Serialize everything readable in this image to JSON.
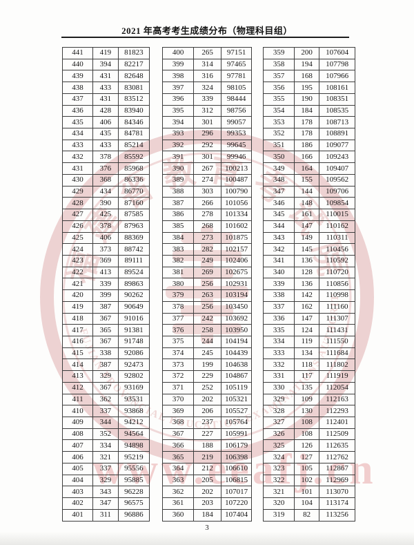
{
  "page": {
    "title": "2021 年高考考生成绩分布（物理科目组）",
    "page_number": "3"
  },
  "watermark": {
    "seal_chinese": "福建省教育考试院",
    "seal_english": "FUJIAN PROVINCIAL EDUCATION EXAMINATIONS AUTHORITY",
    "url_text": "www.eeafj.cn",
    "color": "#cf7d7d"
  },
  "tables": [
    {
      "rows": [
        [
          441,
          419,
          81823
        ],
        [
          440,
          394,
          82217
        ],
        [
          439,
          431,
          82648
        ],
        [
          438,
          433,
          83081
        ],
        [
          437,
          431,
          83512
        ],
        [
          436,
          428,
          83940
        ],
        [
          435,
          406,
          84346
        ],
        [
          434,
          435,
          84781
        ],
        [
          433,
          433,
          85214
        ],
        [
          432,
          378,
          85592
        ],
        [
          431,
          376,
          85968
        ],
        [
          430,
          368,
          86336
        ],
        [
          429,
          434,
          86770
        ],
        [
          428,
          390,
          87160
        ],
        [
          427,
          425,
          87585
        ],
        [
          426,
          378,
          87963
        ],
        [
          425,
          406,
          88369
        ],
        [
          424,
          373,
          88742
        ],
        [
          423,
          369,
          89111
        ],
        [
          422,
          413,
          89524
        ],
        [
          421,
          339,
          89863
        ],
        [
          420,
          399,
          90262
        ],
        [
          419,
          387,
          90649
        ],
        [
          418,
          367,
          91016
        ],
        [
          417,
          365,
          91381
        ],
        [
          416,
          367,
          91748
        ],
        [
          415,
          338,
          92086
        ],
        [
          414,
          387,
          92473
        ],
        [
          413,
          329,
          92802
        ],
        [
          412,
          367,
          93169
        ],
        [
          411,
          362,
          93531
        ],
        [
          410,
          337,
          93868
        ],
        [
          409,
          344,
          94212
        ],
        [
          408,
          352,
          94564
        ],
        [
          407,
          334,
          94898
        ],
        [
          406,
          321,
          95219
        ],
        [
          405,
          337,
          95556
        ],
        [
          404,
          329,
          95885
        ],
        [
          403,
          343,
          96228
        ],
        [
          402,
          347,
          96575
        ],
        [
          401,
          311,
          96886
        ]
      ]
    },
    {
      "rows": [
        [
          400,
          265,
          97151
        ],
        [
          399,
          314,
          97465
        ],
        [
          398,
          316,
          97781
        ],
        [
          397,
          324,
          98105
        ],
        [
          396,
          339,
          98444
        ],
        [
          395,
          312,
          98756
        ],
        [
          394,
          301,
          99057
        ],
        [
          393,
          296,
          99353
        ],
        [
          392,
          292,
          99645
        ],
        [
          391,
          301,
          99946
        ],
        [
          390,
          267,
          100213
        ],
        [
          389,
          274,
          100487
        ],
        [
          388,
          303,
          100790
        ],
        [
          387,
          266,
          101056
        ],
        [
          386,
          278,
          101334
        ],
        [
          385,
          268,
          101602
        ],
        [
          384,
          273,
          101875
        ],
        [
          383,
          282,
          102157
        ],
        [
          382,
          249,
          102406
        ],
        [
          381,
          269,
          102675
        ],
        [
          380,
          256,
          102931
        ],
        [
          379,
          263,
          103194
        ],
        [
          378,
          256,
          103450
        ],
        [
          377,
          242,
          103692
        ],
        [
          376,
          258,
          103950
        ],
        [
          375,
          244,
          104194
        ],
        [
          374,
          245,
          104439
        ],
        [
          373,
          199,
          104638
        ],
        [
          372,
          229,
          104867
        ],
        [
          371,
          252,
          105119
        ],
        [
          370,
          202,
          105321
        ],
        [
          369,
          206,
          105527
        ],
        [
          368,
          237,
          105764
        ],
        [
          367,
          227,
          105991
        ],
        [
          366,
          188,
          106179
        ],
        [
          365,
          219,
          106398
        ],
        [
          364,
          212,
          106610
        ],
        [
          363,
          205,
          106815
        ],
        [
          362,
          202,
          107017
        ],
        [
          361,
          203,
          107220
        ],
        [
          360,
          184,
          107404
        ]
      ]
    },
    {
      "rows": [
        [
          359,
          200,
          107604
        ],
        [
          358,
          194,
          107798
        ],
        [
          357,
          168,
          107966
        ],
        [
          356,
          195,
          108161
        ],
        [
          355,
          190,
          108351
        ],
        [
          354,
          184,
          108535
        ],
        [
          353,
          178,
          108713
        ],
        [
          352,
          178,
          108891
        ],
        [
          351,
          186,
          109077
        ],
        [
          350,
          166,
          109243
        ],
        [
          349,
          164,
          109407
        ],
        [
          348,
          155,
          109562
        ],
        [
          347,
          144,
          109706
        ],
        [
          346,
          148,
          109854
        ],
        [
          345,
          161,
          110015
        ],
        [
          344,
          147,
          110162
        ],
        [
          343,
          149,
          110311
        ],
        [
          342,
          145,
          110456
        ],
        [
          341,
          136,
          110592
        ],
        [
          340,
          128,
          110720
        ],
        [
          339,
          136,
          110856
        ],
        [
          338,
          142,
          110998
        ],
        [
          337,
          162,
          111160
        ],
        [
          336,
          147,
          111307
        ],
        [
          335,
          124,
          111431
        ],
        [
          334,
          119,
          111550
        ],
        [
          333,
          134,
          111684
        ],
        [
          332,
          118,
          111802
        ],
        [
          331,
          117,
          111919
        ],
        [
          330,
          135,
          112054
        ],
        [
          329,
          109,
          112163
        ],
        [
          328,
          130,
          112293
        ],
        [
          327,
          108,
          112401
        ],
        [
          326,
          108,
          112509
        ],
        [
          325,
          126,
          112635
        ],
        [
          324,
          127,
          112762
        ],
        [
          323,
          105,
          112867
        ],
        [
          322,
          102,
          112969
        ],
        [
          321,
          101,
          113070
        ],
        [
          320,
          104,
          113174
        ],
        [
          319,
          82,
          113256
        ]
      ]
    }
  ]
}
